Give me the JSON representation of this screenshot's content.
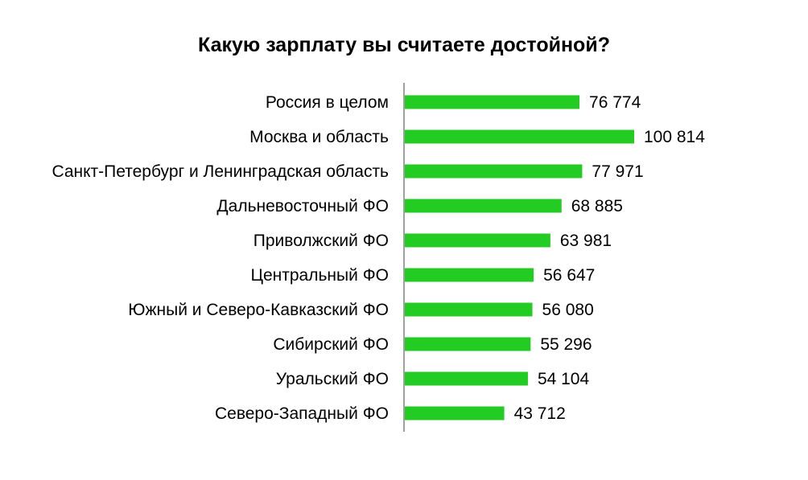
{
  "chart_data": {
    "type": "bar",
    "orientation": "horizontal",
    "title": "Какую зарплату вы считаете достойной?",
    "categories": [
      "Россия в целом",
      "Москва и область",
      "Санкт-Петербург и Ленинградская область",
      "Дальневосточный ФО",
      "Приволжский ФО",
      "Центральный ФО",
      "Южный и Северо-Кавказский ФО",
      "Сибирский ФО",
      "Уральский ФО",
      "Северо-Западный ФО"
    ],
    "values": [
      76774,
      100814,
      77971,
      68885,
      63981,
      56647,
      56080,
      55296,
      54104,
      43712
    ],
    "value_labels": [
      "76 774",
      "100 814",
      "77 971",
      "68 885",
      "63 981",
      "56 647",
      "56 080",
      "55 296",
      "54 104",
      "43 712"
    ],
    "xlim": [
      0,
      100814
    ],
    "grid": false,
    "legend": "none",
    "bar_color": "#22cc22"
  }
}
